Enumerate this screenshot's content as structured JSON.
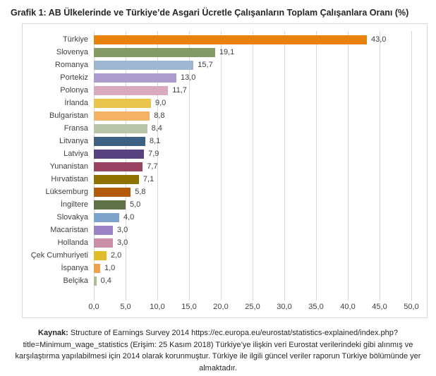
{
  "page": {
    "title": "Grafik 1: AB Ülkelerinde ve Türkiye’de Asgari Ücretle Çalışanların Toplam Çalışanlara Oranı (%)"
  },
  "chart_data": {
    "type": "bar",
    "orientation": "horizontal",
    "title": "Grafik 1: AB Ülkelerinde ve Türkiye’de Asgari Ücretle Çalışanların Toplam Çalışanlara Oranı (%)",
    "categories": [
      "Türkiye",
      "Slovenya",
      "Romanya",
      "Portekiz",
      "Polonya",
      "İrlanda",
      "Bulgaristan",
      "Fransa",
      "Litvanya",
      "Latviya",
      "Yunanistan",
      "Hırvatistan",
      "Lüksemburg",
      "İngiltere",
      "Slovakya",
      "Macaristan",
      "Hollanda",
      "Çek Cumhuriyeti",
      "İspanya",
      "Belçika"
    ],
    "values": [
      43.0,
      19.1,
      15.7,
      13.0,
      11.7,
      9.0,
      8.8,
      8.4,
      8.1,
      7.9,
      7.7,
      7.1,
      5.8,
      5.0,
      4.0,
      3.0,
      3.0,
      2.0,
      1.0,
      0.4
    ],
    "value_labels": [
      "43,0",
      "19,1",
      "15,7",
      "13,0",
      "11,7",
      "9,0",
      "8,8",
      "8,4",
      "8,1",
      "7,9",
      "7,7",
      "7,1",
      "5,8",
      "5,0",
      "4,0",
      "3,0",
      "3,0",
      "2,0",
      "1,0",
      "0,4"
    ],
    "bar_colors": [
      "#E8820D",
      "#849B68",
      "#9FB6D3",
      "#AC9DCE",
      "#D9A9BD",
      "#EAC54E",
      "#F4B266",
      "#B9C5A9",
      "#3D6183",
      "#584380",
      "#984361",
      "#8F7300",
      "#B35B0A",
      "#5F7146",
      "#7EA4CC",
      "#9B82C4",
      "#CB8FA9",
      "#E0BC2B",
      "#F0A14B",
      "#ABBE93"
    ],
    "xlim": [
      0,
      50
    ],
    "x_ticks": [
      0,
      5,
      10,
      15,
      20,
      25,
      30,
      35,
      40,
      45,
      50
    ],
    "x_tick_labels": [
      "0,0",
      "5,0",
      "10,0",
      "15,0",
      "20,0",
      "25,0",
      "30,0",
      "35,0",
      "40,0",
      "45,0",
      "50,0"
    ],
    "xlabel": "",
    "ylabel": "",
    "grid": "vertical",
    "legend": "none"
  },
  "caption": {
    "kaynak_label": "Kaynak:",
    "text": " Structure of Earnings Survey 2014 https://ec.europa.eu/eurostat/statistics-explained/index.php?title=Minimum_wage_statistics (Erişim: 25 Kasım 2018) Türkiye’ye ilişkin veri Eurostat verilerindeki gibi alınmış ve karşılaştırma yapılabilmesi için 2014 olarak korunmuştur.  Türkiye ile ilgili güncel veriler raporun Türkiye bölümünde yer almaktadır."
  },
  "colors": {
    "grid": "#D9D9D9",
    "frame_border": "#D9D9D9",
    "axis_text": "#404040",
    "title_text": "#262626"
  }
}
